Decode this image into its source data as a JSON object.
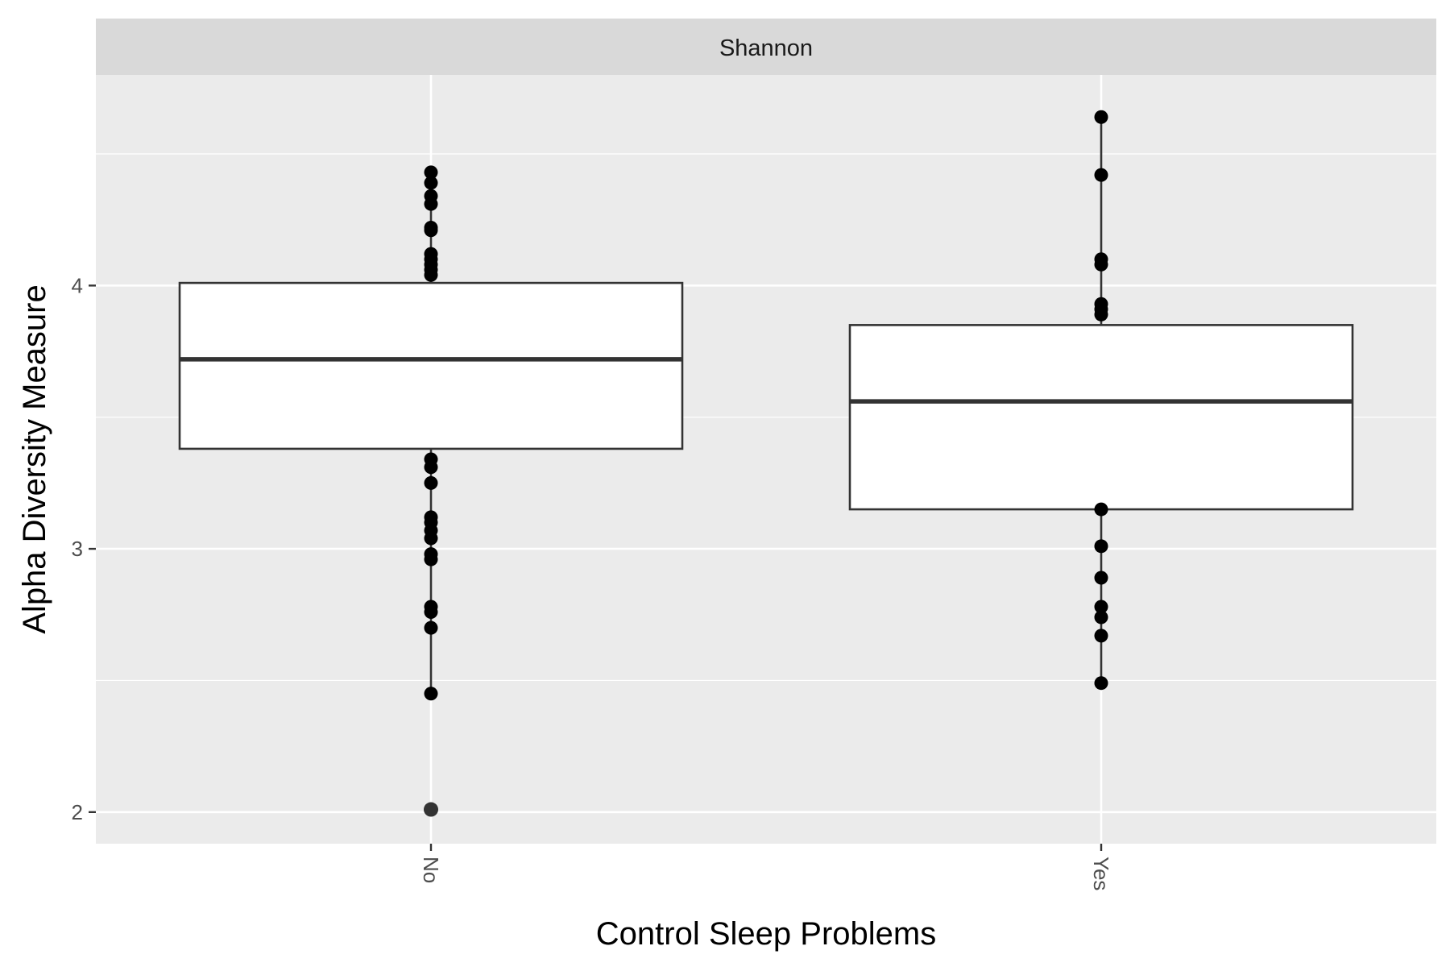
{
  "chart_data": {
    "type": "box",
    "facet": "Shannon",
    "xlabel": "Control Sleep Problems",
    "ylabel": "Alpha Diversity Measure",
    "ylim": [
      1.88,
      4.8
    ],
    "yticks": [
      2,
      3,
      4
    ],
    "ytick_labels": [
      "2",
      "3",
      "4"
    ],
    "grid": true,
    "legend": "none",
    "categories": [
      "No",
      "Yes"
    ],
    "boxes": [
      {
        "category": "No",
        "q1": 3.38,
        "median": 3.72,
        "q3": 4.01,
        "whisker_low": 2.45,
        "whisker_high": 4.43,
        "points": [
          4.43,
          4.39,
          4.34,
          4.31,
          4.22,
          4.21,
          4.12,
          4.1,
          4.08,
          4.06,
          4.04,
          3.34,
          3.31,
          3.25,
          3.12,
          3.1,
          3.07,
          3.04,
          2.98,
          2.96,
          2.78,
          2.76,
          2.7,
          2.45
        ],
        "outliers": [
          2.01
        ]
      },
      {
        "category": "Yes",
        "q1": 3.15,
        "median": 3.56,
        "q3": 3.85,
        "whisker_low": 2.49,
        "whisker_high": 4.64,
        "points": [
          4.64,
          4.42,
          4.1,
          4.08,
          3.93,
          3.91,
          3.89,
          3.15,
          3.01,
          2.89,
          2.78,
          2.74,
          2.67,
          2.49
        ],
        "outliers": []
      }
    ]
  },
  "colors": {
    "panel_bg": "#ebebeb",
    "strip_bg": "#d9d9d9",
    "grid": "#ffffff",
    "box_fill": "#ffffff",
    "box_line": "#333333",
    "point": "#000000",
    "outlier": "#333333"
  }
}
